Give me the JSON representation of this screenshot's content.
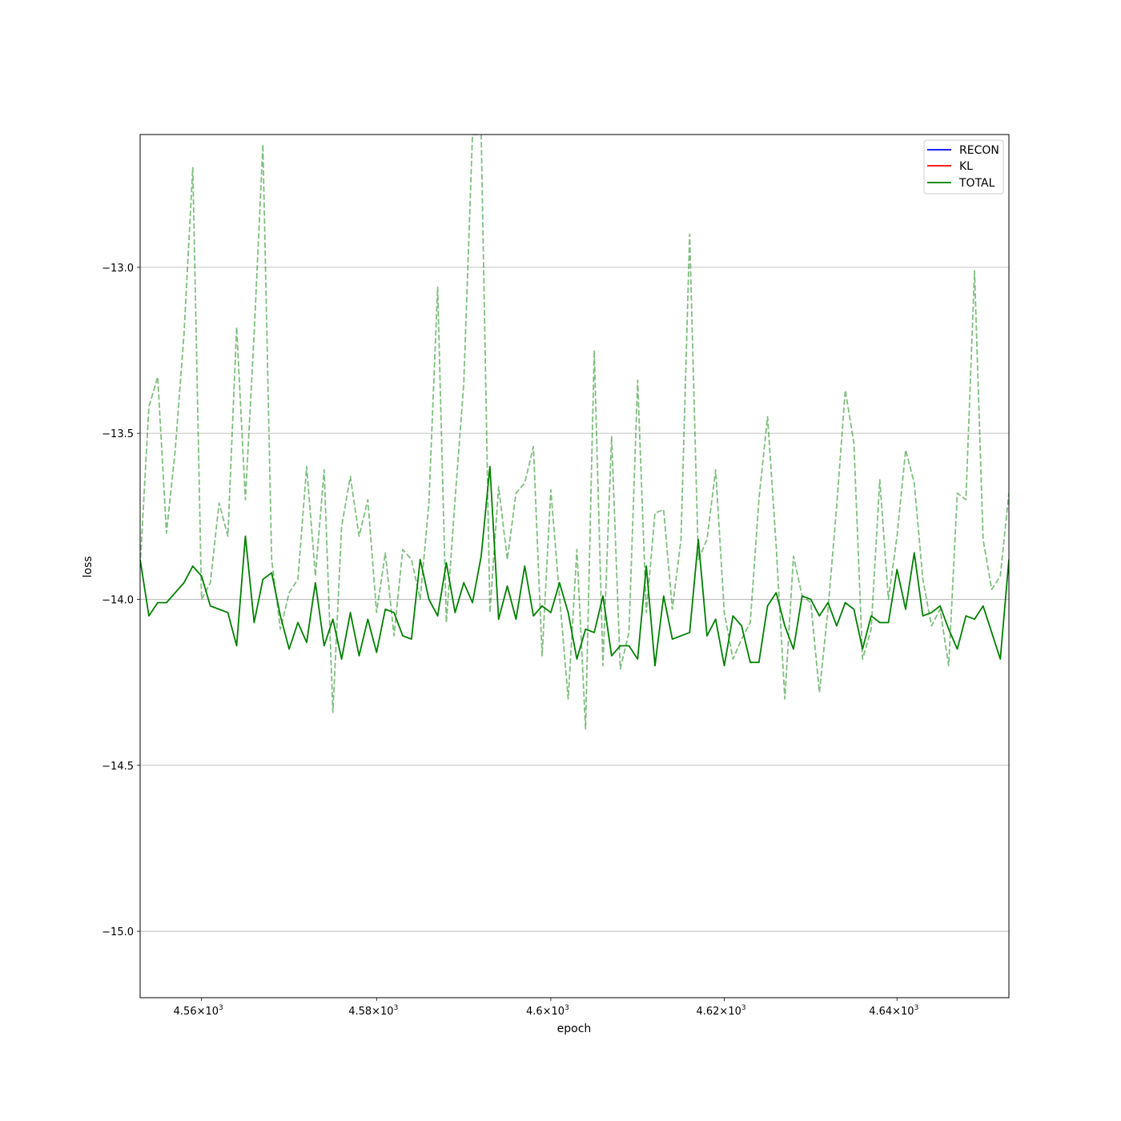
{
  "chart_data": {
    "type": "line",
    "title": "",
    "xlabel": "epoch",
    "ylabel": "loss",
    "x_scale": "log",
    "xlim": [
      4553,
      4653
    ],
    "ylim": [
      -15.2,
      -12.6
    ],
    "grid": "y-major",
    "x_ticks": [
      {
        "value": 4560,
        "label": "4.56×10³",
        "mantissa": "4.56",
        "exp": "3"
      },
      {
        "value": 4580,
        "label": "4.58×10³",
        "mantissa": "4.58",
        "exp": "3"
      },
      {
        "value": 4600,
        "label": "4.6×10³",
        "mantissa": "4.6",
        "exp": "3"
      },
      {
        "value": 4620,
        "label": "4.62×10³",
        "mantissa": "4.62",
        "exp": "3"
      },
      {
        "value": 4640,
        "label": "4.64×10³",
        "mantissa": "4.64",
        "exp": "3"
      }
    ],
    "y_ticks": [
      {
        "value": -13.0,
        "label": "−13.0"
      },
      {
        "value": -13.5,
        "label": "−13.5"
      },
      {
        "value": -14.0,
        "label": "−14.0"
      },
      {
        "value": -14.5,
        "label": "−14.5"
      },
      {
        "value": -15.0,
        "label": "−15.0"
      }
    ],
    "legend": {
      "placement": "upper-right",
      "entries": [
        {
          "label": "RECON",
          "color": "#0000ff"
        },
        {
          "label": "KL",
          "color": "#ff0000"
        },
        {
          "label": "TOTAL",
          "color": "#008000"
        }
      ]
    },
    "x_start": 4553,
    "x_step": 1,
    "series": [
      {
        "name": "TOTAL",
        "color": "#008000",
        "style": "solid",
        "values": [
          -13.88,
          -14.05,
          -14.01,
          -14.01,
          -13.98,
          -13.95,
          -13.9,
          -13.93,
          -14.02,
          -14.03,
          -14.04,
          -14.14,
          -13.81,
          -14.07,
          -13.94,
          -13.92,
          -14.05,
          -14.15,
          -14.07,
          -14.13,
          -13.95,
          -14.14,
          -14.06,
          -14.18,
          -14.04,
          -14.17,
          -14.06,
          -14.16,
          -14.03,
          -14.04,
          -14.11,
          -14.12,
          -13.88,
          -14.0,
          -14.05,
          -13.89,
          -14.04,
          -13.95,
          -14.01,
          -13.87,
          -13.6,
          -14.06,
          -13.96,
          -14.06,
          -13.9,
          -14.05,
          -14.02,
          -14.04,
          -13.95,
          -14.04,
          -14.18,
          -14.09,
          -14.1,
          -13.99,
          -14.17,
          -14.14,
          -14.14,
          -14.18,
          -13.9,
          -14.2,
          -13.99,
          -14.12,
          -14.11,
          -14.1,
          -13.82,
          -14.11,
          -14.06,
          -14.2,
          -14.05,
          -14.08,
          -14.19,
          -14.19,
          -14.02,
          -13.98,
          -14.08,
          -14.15,
          -13.99,
          -14.0,
          -14.05,
          -14.01,
          -14.08,
          -14.01,
          -14.03,
          -14.15,
          -14.05,
          -14.07,
          -14.07,
          -13.91,
          -14.03,
          -13.86,
          -14.05,
          -14.04,
          -14.02,
          -14.09,
          -14.15,
          -14.05,
          -14.06,
          -14.02,
          -14.1,
          -14.18,
          -13.88
        ]
      },
      {
        "name": "",
        "color": "#008000",
        "style": "dashed",
        "opacity": 0.5,
        "values": [
          -13.9,
          -13.42,
          -13.33,
          -13.8,
          -13.55,
          -13.2,
          -12.7,
          -14.0,
          -13.95,
          -13.71,
          -13.81,
          -13.18,
          -13.7,
          -13.2,
          -12.63,
          -13.88,
          -14.09,
          -13.98,
          -13.94,
          -13.6,
          -13.93,
          -13.61,
          -14.34,
          -13.78,
          -13.63,
          -13.81,
          -13.7,
          -14.04,
          -13.86,
          -14.11,
          -13.85,
          -13.88,
          -14.0,
          -13.71,
          -13.06,
          -14.07,
          -13.7,
          -13.35,
          -12.6,
          -12.6,
          -14.04,
          -13.66,
          -13.88,
          -13.68,
          -13.65,
          -13.54,
          -14.17,
          -13.67,
          -13.99,
          -14.3,
          -13.85,
          -14.39,
          -13.25,
          -14.2,
          -13.51,
          -14.21,
          -14.1,
          -13.34,
          -14.04,
          -13.74,
          -13.73,
          -14.03,
          -13.82,
          -12.9,
          -13.88,
          -13.82,
          -13.61,
          -14.04,
          -14.18,
          -14.12,
          -14.07,
          -13.7,
          -13.45,
          -13.84,
          -14.3,
          -13.87,
          -13.99,
          -14.01,
          -14.28,
          -14.03,
          -13.72,
          -13.37,
          -13.53,
          -14.18,
          -14.09,
          -13.64,
          -14.0,
          -13.81,
          -13.55,
          -13.65,
          -13.94,
          -14.08,
          -14.03,
          -14.2,
          -13.68,
          -13.7,
          -13.01,
          -13.82,
          -13.97,
          -13.93,
          -13.68
        ]
      }
    ]
  }
}
